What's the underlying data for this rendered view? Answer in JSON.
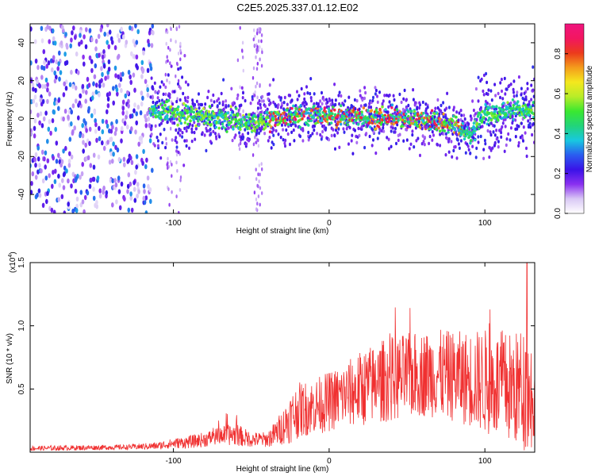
{
  "title": "C2E5.2025.337.01.12.E02",
  "chart_data": [
    {
      "type": "heatmap",
      "xlabel": "Height of straight line (km)",
      "ylabel": "Frequency (Hz)",
      "xlim": [
        -192,
        132
      ],
      "ylim": [
        -50,
        50
      ],
      "xticks": [
        -100,
        0,
        100
      ],
      "yticks": [
        -40,
        -20,
        0,
        20,
        40
      ],
      "colorbar": {
        "label": "Normalized spectral amplitude",
        "range": [
          0.0,
          0.95
        ],
        "ticks": [
          0.0,
          0.2,
          0.4,
          0.6,
          0.8
        ],
        "tick_labels": [
          "0.0",
          "0.2",
          "0.4",
          "0.6",
          "0.8"
        ],
        "colors": [
          "#ffffff",
          "#d9c8f5",
          "#8a30f0",
          "#3a12e8",
          "#2a5cf0",
          "#18c8e0",
          "#22d47a",
          "#3ae830",
          "#b8ec28",
          "#f4e81e",
          "#f49c1c",
          "#ec3a1c",
          "#f21660",
          "#f0147e"
        ]
      },
      "ridge": {
        "x": [
          -110,
          -100,
          -90,
          -80,
          -70,
          -60,
          -50,
          -40,
          -30,
          -20,
          -10,
          0,
          10,
          20,
          30,
          40,
          50,
          60,
          70,
          80,
          85,
          90,
          95,
          100,
          110,
          120,
          132
        ],
        "y": [
          4,
          3,
          2,
          1,
          0,
          0,
          -2,
          -1,
          1,
          2,
          2,
          1,
          1,
          1,
          0,
          0,
          0,
          -1,
          -2,
          -3,
          -5,
          -9,
          -2,
          3,
          3,
          4,
          4
        ]
      },
      "noise_region_x": [
        -192,
        -115
      ]
    },
    {
      "type": "line",
      "xlabel": "Height of straight line (km)",
      "ylabel": "SNR (10 * v/v)",
      "exponent_label": "(x10",
      "exponent_power": "4",
      "exponent_close": ")",
      "xlim": [
        -192,
        132
      ],
      "ylim": [
        0,
        1.5
      ],
      "xticks": [
        -100,
        0,
        100
      ],
      "yticks": [
        0.5,
        1.0,
        1.5
      ],
      "ytick_labels": [
        "0.5",
        "1.0",
        "1.5"
      ],
      "series": [
        {
          "name": "SNR",
          "color": "#f03030",
          "envelope_x": [
            -192,
            -130,
            -110,
            -100,
            -90,
            -80,
            -70,
            -60,
            -50,
            -40,
            -35,
            -30,
            -25,
            -20,
            -10,
            0,
            10,
            20,
            30,
            40,
            50,
            60,
            70,
            80,
            90,
            100,
            110,
            120,
            125,
            130,
            132
          ],
          "envelope_mean": [
            0.03,
            0.04,
            0.05,
            0.07,
            0.08,
            0.1,
            0.13,
            0.14,
            0.1,
            0.1,
            0.14,
            0.2,
            0.27,
            0.33,
            0.36,
            0.4,
            0.45,
            0.5,
            0.55,
            0.58,
            0.6,
            0.62,
            0.62,
            0.6,
            0.58,
            0.56,
            0.52,
            0.5,
            0.5,
            0.45,
            0.45
          ],
          "envelope_spread": [
            0.02,
            0.02,
            0.03,
            0.04,
            0.05,
            0.06,
            0.07,
            0.09,
            0.06,
            0.06,
            0.1,
            0.14,
            0.2,
            0.22,
            0.22,
            0.24,
            0.26,
            0.3,
            0.32,
            0.34,
            0.34,
            0.34,
            0.35,
            0.36,
            0.38,
            0.42,
            0.44,
            0.46,
            0.5,
            0.45,
            0.4
          ],
          "peak": {
            "x": 127,
            "y": 1.5
          }
        }
      ]
    }
  ]
}
